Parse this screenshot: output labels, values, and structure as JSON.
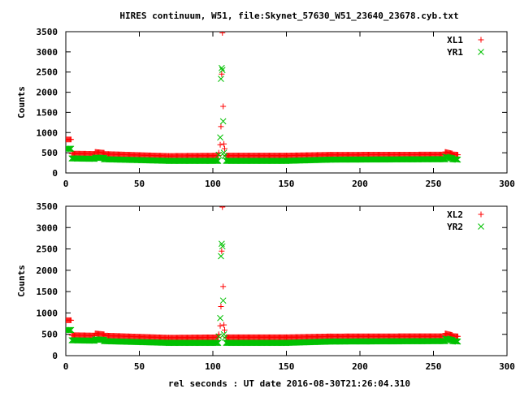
{
  "chart_data": {
    "type": "scatter",
    "title": "HIRES continuum, W51, file:Skynet_57630_W51_23640_23678.cyb.txt",
    "xlabel": "rel seconds : UT date 2016-08-30T21:26:04.310",
    "xlim": [
      0,
      300
    ],
    "x_ticks": [
      "0",
      "50",
      "100",
      "150",
      "200",
      "250",
      "300"
    ],
    "grid": false,
    "legend_position": "top-right",
    "panels": [
      {
        "ylabel": "Counts",
        "ylim": [
          0,
          3500
        ],
        "y_ticks": [
          "0",
          "500",
          "1000",
          "1500",
          "2000",
          "2500",
          "3000",
          "3500"
        ],
        "series": [
          {
            "name": "XL1",
            "marker": "plus",
            "color": "#ff0000",
            "segments": [
              {
                "x": [
                  0,
                  4
                ],
                "y": [
                  830,
                  830
                ]
              },
              {
                "x": [
                  4,
                  20
                ],
                "y": [
                  480,
                  470
                ]
              },
              {
                "x": [
                  20,
                  26
                ],
                "y": [
                  520,
                  500
                ]
              },
              {
                "x": [
                  26,
                  70
                ],
                "y": [
                  470,
                  420
                ]
              },
              {
                "x": [
                  70,
                  104
                ],
                "y": [
                  420,
                  430
                ]
              },
              {
                "x": [
                  109,
                  150
                ],
                "y": [
                  430,
                  430
                ]
              },
              {
                "x": [
                  150,
                  180
                ],
                "y": [
                  430,
                  450
                ]
              },
              {
                "x": [
                  180,
                  258
                ],
                "y": [
                  450,
                  455
                ]
              },
              {
                "x": [
                  258,
                  263
                ],
                "y": [
                  520,
                  480
                ]
              },
              {
                "x": [
                  263,
                  267
                ],
                "y": [
                  460,
                  450
                ]
              }
            ],
            "spike": [
              {
                "x": 104,
                "y": 500
              },
              {
                "x": 105,
                "y": 700
              },
              {
                "x": 105.5,
                "y": 1150
              },
              {
                "x": 106,
                "y": 2450
              },
              {
                "x": 106.5,
                "y": 3470
              },
              {
                "x": 107,
                "y": 1650
              },
              {
                "x": 107.5,
                "y": 720
              },
              {
                "x": 108,
                "y": 600
              }
            ]
          },
          {
            "name": "YR1",
            "marker": "cross",
            "color": "#00c000",
            "segments": [
              {
                "x": [
                  0,
                  4
                ],
                "y": [
                  600,
                  600
                ]
              },
              {
                "x": [
                  4,
                  20
                ],
                "y": [
                  360,
                  350
                ]
              },
              {
                "x": [
                  20,
                  26
                ],
                "y": [
                  380,
                  370
                ]
              },
              {
                "x": [
                  26,
                  70
                ],
                "y": [
                  340,
                  300
                ]
              },
              {
                "x": [
                  70,
                  104
                ],
                "y": [
                  300,
                  300
                ]
              },
              {
                "x": [
                  109,
                  150
                ],
                "y": [
                  300,
                  300
                ]
              },
              {
                "x": [
                  150,
                  180
                ],
                "y": [
                  300,
                  330
                ]
              },
              {
                "x": [
                  180,
                  258
                ],
                "y": [
                  330,
                  340
                ]
              },
              {
                "x": [
                  258,
                  263
                ],
                "y": [
                  400,
                  360
                ]
              },
              {
                "x": [
                  263,
                  267
                ],
                "y": [
                  340,
                  330
                ]
              }
            ],
            "spike": [
              {
                "x": 104,
                "y": 450
              },
              {
                "x": 105,
                "y": 880
              },
              {
                "x": 105.5,
                "y": 2330
              },
              {
                "x": 106,
                "y": 2600
              },
              {
                "x": 106.5,
                "y": 2550
              },
              {
                "x": 107,
                "y": 1280
              },
              {
                "x": 107.5,
                "y": 500
              },
              {
                "x": 108,
                "y": 420
              }
            ]
          }
        ]
      },
      {
        "ylabel": "Counts",
        "ylim": [
          0,
          3500
        ],
        "y_ticks": [
          "0",
          "500",
          "1000",
          "1500",
          "2000",
          "2500",
          "3000",
          "3500"
        ],
        "series": [
          {
            "name": "XL2",
            "marker": "plus",
            "color": "#ff0000",
            "segments": [
              {
                "x": [
                  0,
                  4
                ],
                "y": [
                  830,
                  830
                ]
              },
              {
                "x": [
                  4,
                  20
                ],
                "y": [
                  480,
                  470
                ]
              },
              {
                "x": [
                  20,
                  26
                ],
                "y": [
                  520,
                  500
                ]
              },
              {
                "x": [
                  26,
                  70
                ],
                "y": [
                  470,
                  420
                ]
              },
              {
                "x": [
                  70,
                  104
                ],
                "y": [
                  420,
                  430
                ]
              },
              {
                "x": [
                  109,
                  150
                ],
                "y": [
                  430,
                  430
                ]
              },
              {
                "x": [
                  150,
                  180
                ],
                "y": [
                  430,
                  450
                ]
              },
              {
                "x": [
                  180,
                  258
                ],
                "y": [
                  450,
                  455
                ]
              },
              {
                "x": [
                  258,
                  263
                ],
                "y": [
                  520,
                  480
                ]
              },
              {
                "x": [
                  263,
                  267
                ],
                "y": [
                  460,
                  450
                ]
              }
            ],
            "spike": [
              {
                "x": 104,
                "y": 500
              },
              {
                "x": 105,
                "y": 700
              },
              {
                "x": 105.5,
                "y": 1150
              },
              {
                "x": 106,
                "y": 2450
              },
              {
                "x": 106.5,
                "y": 3480
              },
              {
                "x": 107,
                "y": 1620
              },
              {
                "x": 107.5,
                "y": 720
              },
              {
                "x": 108,
                "y": 600
              }
            ]
          },
          {
            "name": "YR2",
            "marker": "cross",
            "color": "#00c000",
            "segments": [
              {
                "x": [
                  0,
                  4
                ],
                "y": [
                  600,
                  600
                ]
              },
              {
                "x": [
                  4,
                  20
                ],
                "y": [
                  360,
                  350
                ]
              },
              {
                "x": [
                  20,
                  26
                ],
                "y": [
                  380,
                  370
                ]
              },
              {
                "x": [
                  26,
                  70
                ],
                "y": [
                  340,
                  300
                ]
              },
              {
                "x": [
                  70,
                  104
                ],
                "y": [
                  300,
                  300
                ]
              },
              {
                "x": [
                  109,
                  150
                ],
                "y": [
                  300,
                  300
                ]
              },
              {
                "x": [
                  150,
                  180
                ],
                "y": [
                  300,
                  330
                ]
              },
              {
                "x": [
                  180,
                  258
                ],
                "y": [
                  330,
                  340
                ]
              },
              {
                "x": [
                  258,
                  263
                ],
                "y": [
                  400,
                  360
                ]
              },
              {
                "x": [
                  263,
                  267
                ],
                "y": [
                  340,
                  330
                ]
              }
            ],
            "spike": [
              {
                "x": 104,
                "y": 450
              },
              {
                "x": 105,
                "y": 880
              },
              {
                "x": 105.5,
                "y": 2330
              },
              {
                "x": 106,
                "y": 2620
              },
              {
                "x": 106.5,
                "y": 2560
              },
              {
                "x": 107,
                "y": 1290
              },
              {
                "x": 107.5,
                "y": 500
              },
              {
                "x": 108,
                "y": 420
              }
            ]
          }
        ]
      }
    ]
  }
}
